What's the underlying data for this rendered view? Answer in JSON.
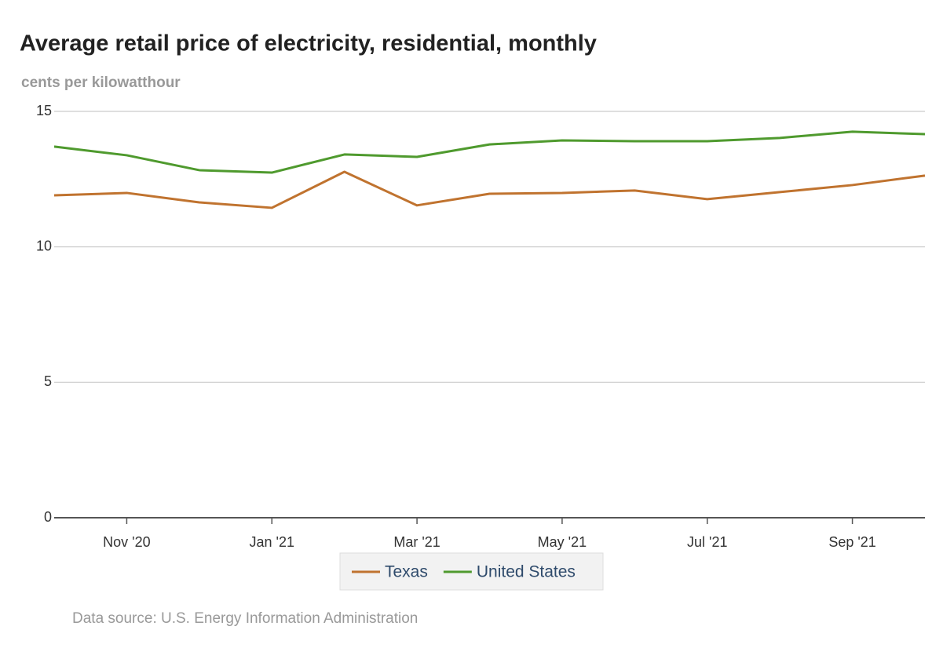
{
  "chart_data": {
    "type": "line",
    "title": "Average retail price of electricity, residential, monthly",
    "subtitle": "cents per kilowatthour",
    "source": "Data source: U.S. Energy Information Administration",
    "categories": [
      null,
      "Nov '20",
      null,
      "Jan '21",
      null,
      "Mar '21",
      null,
      "May '21",
      null,
      "Jul '21",
      null,
      "Sep '21",
      null
    ],
    "series": [
      {
        "name": "Texas",
        "color": "#c0732f",
        "values": [
          11.9,
          11.99,
          11.64,
          11.44,
          12.77,
          11.53,
          11.96,
          11.99,
          12.08,
          11.76,
          12.02,
          12.28,
          12.63
        ]
      },
      {
        "name": "United States",
        "color": "#4f9a2e",
        "values": [
          13.7,
          13.38,
          12.83,
          12.74,
          13.41,
          13.32,
          13.78,
          13.93,
          13.9,
          13.9,
          14.02,
          14.25,
          14.16
        ]
      }
    ],
    "ylim": [
      0,
      15
    ],
    "yticks": [
      0,
      5,
      10,
      15
    ],
    "grid": true
  }
}
